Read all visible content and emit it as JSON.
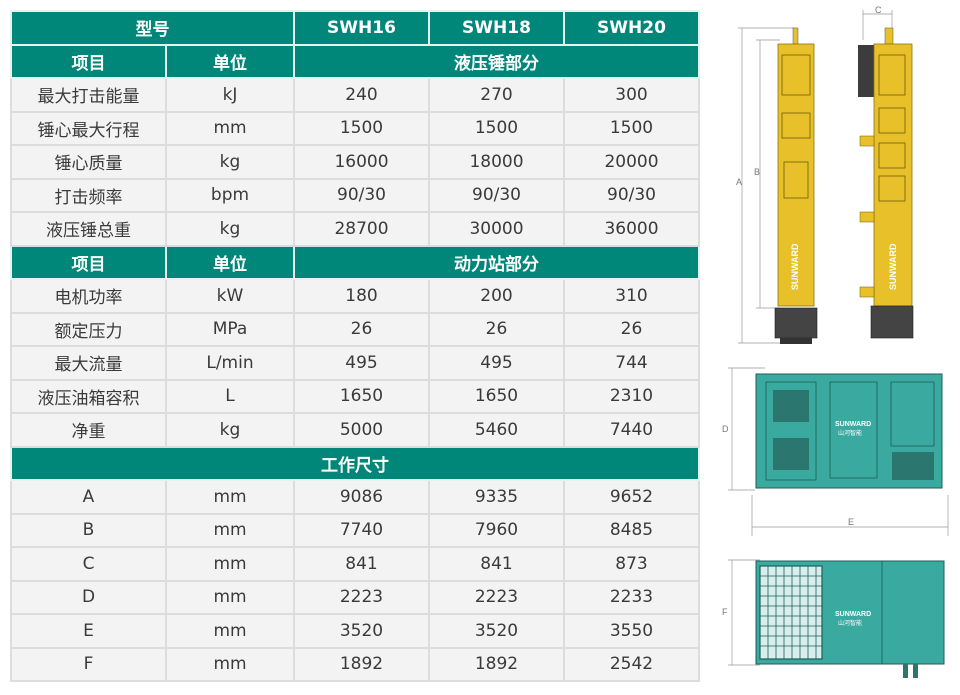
{
  "header": {
    "model_label": "型号",
    "models": [
      "SWH16",
      "SWH18",
      "SWH20"
    ]
  },
  "sections": [
    {
      "col_item": "项目",
      "col_unit": "单位",
      "title": "液压锤部分",
      "rows": [
        {
          "item": "最大打击能量",
          "unit": "kJ",
          "values": [
            "240",
            "270",
            "300"
          ]
        },
        {
          "item": "锤心最大行程",
          "unit": "mm",
          "values": [
            "1500",
            "1500",
            "1500"
          ]
        },
        {
          "item": "锤心质量",
          "unit": "kg",
          "values": [
            "16000",
            "18000",
            "20000"
          ]
        },
        {
          "item": "打击频率",
          "unit": "bpm",
          "values": [
            "90/30",
            "90/30",
            "90/30"
          ]
        },
        {
          "item": "液压锤总重",
          "unit": "kg",
          "values": [
            "28700",
            "30000",
            "36000"
          ]
        }
      ]
    },
    {
      "col_item": "项目",
      "col_unit": "单位",
      "title": "动力站部分",
      "rows": [
        {
          "item": "电机功率",
          "unit": "kW",
          "values": [
            "180",
            "200",
            "310"
          ]
        },
        {
          "item": "额定压力",
          "unit": "MPa",
          "values": [
            "26",
            "26",
            "26"
          ]
        },
        {
          "item": "最大流量",
          "unit": "L/min",
          "values": [
            "495",
            "495",
            "744"
          ]
        },
        {
          "item": "液压油箱容积",
          "unit": "L",
          "values": [
            "1650",
            "1650",
            "2310"
          ]
        },
        {
          "item": "净重",
          "unit": "kg",
          "values": [
            "5000",
            "5460",
            "7440"
          ]
        }
      ]
    },
    {
      "title": "工作尺寸",
      "rows": [
        {
          "item": "A",
          "unit": "mm",
          "values": [
            "9086",
            "9335",
            "9652"
          ]
        },
        {
          "item": "B",
          "unit": "mm",
          "values": [
            "7740",
            "7960",
            "8485"
          ]
        },
        {
          "item": "C",
          "unit": "mm",
          "values": [
            "841",
            "841",
            "873"
          ]
        },
        {
          "item": "D",
          "unit": "mm",
          "values": [
            "2223",
            "2223",
            "2233"
          ]
        },
        {
          "item": "E",
          "unit": "mm",
          "values": [
            "3520",
            "3520",
            "3550"
          ]
        },
        {
          "item": "F",
          "unit": "mm",
          "values": [
            "1892",
            "1892",
            "2542"
          ]
        }
      ]
    }
  ],
  "drawings": {
    "dim_labels": {
      "a": "A",
      "b": "B",
      "c": "C",
      "d": "D",
      "e": "E",
      "f": "F"
    },
    "brand": "SUNWARD",
    "brand_cn": "山河智能",
    "colors": {
      "teal": "#00877a",
      "hammer_yellow": "#e8c12a",
      "power_pack_teal": "#3aa9a0"
    }
  }
}
